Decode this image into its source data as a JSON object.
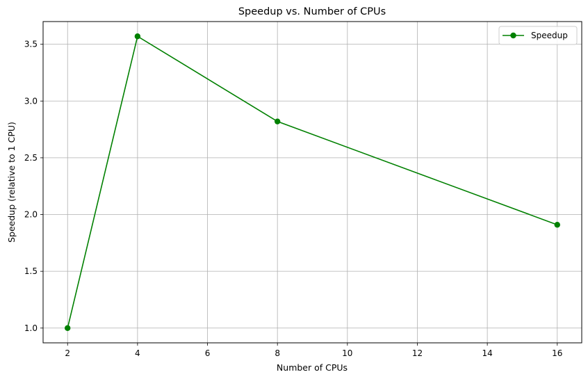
{
  "chart_data": {
    "type": "line",
    "title": "Speedup vs. Number of CPUs",
    "xlabel": "Number of CPUs",
    "ylabel": "Speedup (relative to 1 CPU)",
    "xlim": [
      1.3,
      16.7
    ],
    "ylim": [
      0.87,
      3.7
    ],
    "x_ticks": [
      2,
      4,
      6,
      8,
      10,
      12,
      14,
      16
    ],
    "y_ticks": [
      1.0,
      1.5,
      2.0,
      2.5,
      3.0,
      3.5
    ],
    "x_tick_labels": [
      "2",
      "4",
      "6",
      "8",
      "10",
      "12",
      "14",
      "16"
    ],
    "y_tick_labels": [
      "1.0",
      "1.5",
      "2.0",
      "2.5",
      "3.0",
      "3.5"
    ],
    "grid": true,
    "legend_position": "top-right",
    "series": [
      {
        "name": "Speedup",
        "color": "#008000",
        "marker": "circle",
        "x": [
          2,
          4,
          8,
          16
        ],
        "y": [
          1.0,
          3.57,
          2.82,
          1.91
        ]
      }
    ]
  }
}
